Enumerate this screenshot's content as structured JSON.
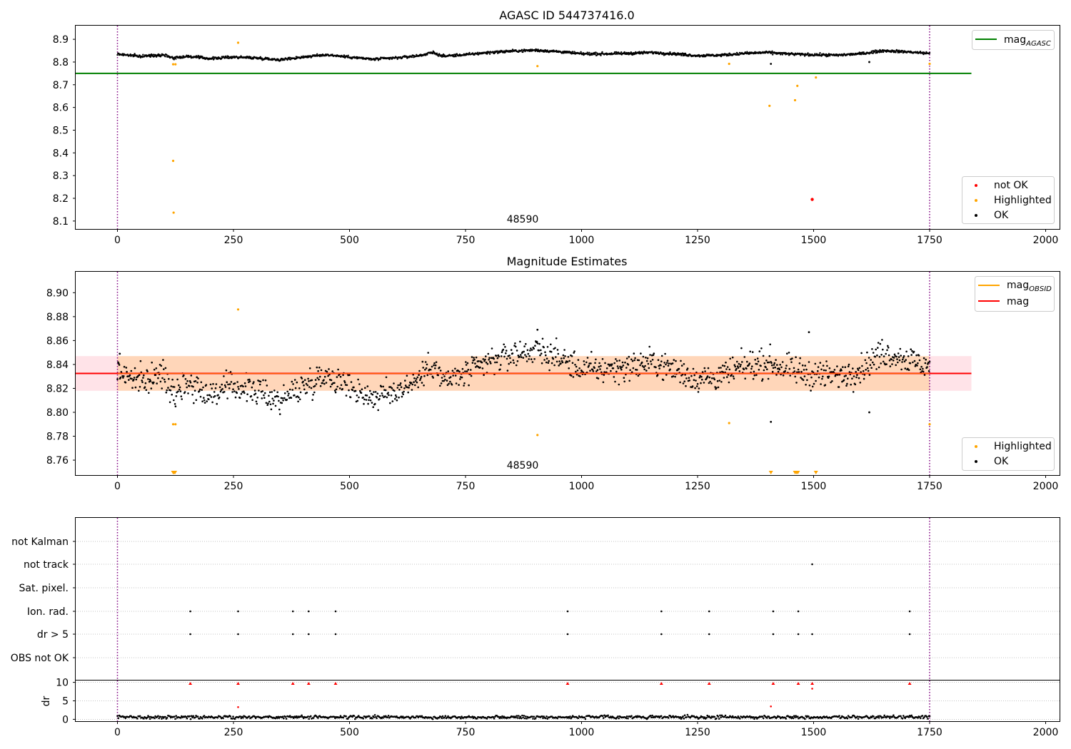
{
  "chart_data": [
    {
      "type": "scatter",
      "title": "AGASC ID 544737416.0",
      "xlim": [
        -90,
        2030
      ],
      "ylim": [
        8.065,
        8.96
      ],
      "xticks": [
        "0",
        "250",
        "500",
        "750",
        "1000",
        "1250",
        "1500",
        "1750",
        "2000"
      ],
      "xtick_values": [
        0,
        250,
        500,
        750,
        1000,
        1250,
        1500,
        1750,
        2000
      ],
      "yticks": [
        "8.1",
        "8.2",
        "8.3",
        "8.4",
        "8.5",
        "8.6",
        "8.7",
        "8.8",
        "8.9"
      ],
      "ytick_values": [
        8.1,
        8.2,
        8.3,
        8.4,
        8.5,
        8.6,
        8.7,
        8.8,
        8.9
      ],
      "vlines": [
        0,
        1750
      ],
      "obsid_label": "48590",
      "obsid_label_x": 875,
      "obsid_label_y": 8.095,
      "mag_agasc": 8.75,
      "mag_agasc_extent": [
        -90,
        1840
      ],
      "legend_lines": [
        {
          "label": "mag",
          "sub": "AGASC",
          "color": "#008000"
        }
      ],
      "legend_points": [
        {
          "label": "not OK",
          "color": "#ff0000"
        },
        {
          "label": "Highlighted",
          "color": "#ffa500"
        },
        {
          "label": "OK",
          "color": "#000000"
        }
      ],
      "ok_trend": [
        [
          0,
          8.835
        ],
        [
          50,
          8.825
        ],
        [
          100,
          8.832
        ],
        [
          120,
          8.818
        ],
        [
          150,
          8.825
        ],
        [
          200,
          8.815
        ],
        [
          250,
          8.822
        ],
        [
          300,
          8.818
        ],
        [
          350,
          8.81
        ],
        [
          400,
          8.822
        ],
        [
          450,
          8.832
        ],
        [
          500,
          8.822
        ],
        [
          550,
          8.812
        ],
        [
          600,
          8.818
        ],
        [
          650,
          8.828
        ],
        [
          680,
          8.842
        ],
        [
          700,
          8.826
        ],
        [
          750,
          8.832
        ],
        [
          800,
          8.842
        ],
        [
          850,
          8.848
        ],
        [
          900,
          8.852
        ],
        [
          950,
          8.846
        ],
        [
          1000,
          8.836
        ],
        [
          1050,
          8.836
        ],
        [
          1100,
          8.838
        ],
        [
          1150,
          8.842
        ],
        [
          1200,
          8.836
        ],
        [
          1250,
          8.828
        ],
        [
          1300,
          8.83
        ],
        [
          1350,
          8.838
        ],
        [
          1400,
          8.842
        ],
        [
          1450,
          8.835
        ],
        [
          1500,
          8.832
        ],
        [
          1550,
          8.83
        ],
        [
          1600,
          8.836
        ],
        [
          1650,
          8.85
        ],
        [
          1700,
          8.845
        ],
        [
          1750,
          8.838
        ]
      ],
      "ok_noise": 0.008,
      "ok_extra": [
        [
          1408,
          8.792
        ],
        [
          1620,
          8.8
        ]
      ],
      "highlighted": [
        [
          120,
          8.79
        ],
        [
          125,
          8.79
        ],
        [
          120,
          8.365
        ],
        [
          121,
          8.137
        ],
        [
          260,
          8.885
        ],
        [
          905,
          8.782
        ],
        [
          1318,
          8.792
        ],
        [
          1405,
          8.607
        ],
        [
          1460,
          8.632
        ],
        [
          1465,
          8.695
        ],
        [
          1505,
          8.732
        ],
        [
          1750,
          8.792
        ]
      ],
      "not_ok": [
        [
          1497,
          8.195
        ]
      ]
    },
    {
      "type": "scatter",
      "title": "Magnitude Estimates",
      "xlim": [
        -90,
        2030
      ],
      "ylim": [
        8.7475,
        8.9175
      ],
      "xticks": [
        "0",
        "250",
        "500",
        "750",
        "1000",
        "1250",
        "1500",
        "1750",
        "2000"
      ],
      "xtick_values": [
        0,
        250,
        500,
        750,
        1000,
        1250,
        1500,
        1750,
        2000
      ],
      "yticks": [
        "8.76",
        "8.78",
        "8.80",
        "8.82",
        "8.84",
        "8.86",
        "8.88",
        "8.90"
      ],
      "ytick_values": [
        8.76,
        8.78,
        8.8,
        8.82,
        8.84,
        8.86,
        8.88,
        8.9
      ],
      "vlines": [
        0,
        1750
      ],
      "obsid_label": "48590",
      "obsid_label_x": 875,
      "obsid_label_y": 8.7535,
      "mag": 8.8325,
      "mag_extent": [
        -90,
        1840
      ],
      "band_outer": [
        8.818,
        8.847
      ],
      "band_outer_extent": [
        -90,
        1840
      ],
      "band_obsid": [
        8.818,
        8.847
      ],
      "band_obsid_extent": [
        0,
        1750
      ],
      "legend_lines": [
        {
          "label": "mag",
          "sub": "OBSID",
          "color": "#ffa500"
        },
        {
          "label": "mag",
          "sub": "",
          "color": "#ff0000"
        }
      ],
      "legend_points": [
        {
          "label": "Highlighted",
          "color": "#ffa500"
        },
        {
          "label": "OK",
          "color": "#000000"
        }
      ],
      "ok_trend": [
        [
          0,
          8.835
        ],
        [
          50,
          8.825
        ],
        [
          100,
          8.832
        ],
        [
          120,
          8.818
        ],
        [
          150,
          8.825
        ],
        [
          200,
          8.815
        ],
        [
          250,
          8.822
        ],
        [
          300,
          8.818
        ],
        [
          350,
          8.81
        ],
        [
          400,
          8.822
        ],
        [
          450,
          8.832
        ],
        [
          500,
          8.822
        ],
        [
          550,
          8.812
        ],
        [
          600,
          8.818
        ],
        [
          650,
          8.828
        ],
        [
          680,
          8.842
        ],
        [
          700,
          8.826
        ],
        [
          750,
          8.832
        ],
        [
          800,
          8.842
        ],
        [
          850,
          8.848
        ],
        [
          900,
          8.852
        ],
        [
          950,
          8.846
        ],
        [
          1000,
          8.836
        ],
        [
          1050,
          8.836
        ],
        [
          1100,
          8.838
        ],
        [
          1150,
          8.842
        ],
        [
          1200,
          8.836
        ],
        [
          1250,
          8.828
        ],
        [
          1300,
          8.83
        ],
        [
          1350,
          8.838
        ],
        [
          1400,
          8.842
        ],
        [
          1450,
          8.835
        ],
        [
          1500,
          8.832
        ],
        [
          1550,
          8.83
        ],
        [
          1600,
          8.836
        ],
        [
          1650,
          8.85
        ],
        [
          1700,
          8.845
        ],
        [
          1750,
          8.838
        ]
      ],
      "ok_noise": 0.008,
      "ok_extra": [
        [
          1408,
          8.792
        ],
        [
          1620,
          8.8
        ],
        [
          5,
          8.849
        ],
        [
          905,
          8.869
        ],
        [
          1490,
          8.867
        ]
      ],
      "highlighted": [
        [
          120,
          8.79
        ],
        [
          125,
          8.79
        ],
        [
          260,
          8.886
        ],
        [
          905,
          8.781
        ],
        [
          1318,
          8.791
        ],
        [
          1750,
          8.79
        ]
      ],
      "highlighted_clipped": [
        120,
        122,
        124,
        1408,
        1460,
        1463,
        1466,
        1505
      ]
    },
    {
      "type": "scatter",
      "title": "",
      "xlim": [
        -90,
        2030
      ],
      "categories": [
        "not Kalman",
        "not track",
        "Sat. pixel.",
        "Ion. rad.",
        "dr > 5",
        "OBS not OK"
      ],
      "flags": {
        "not Kalman": [],
        "not track": [
          1497
        ],
        "Sat. pixel.": [],
        "Ion. rad.": [
          157,
          260,
          378,
          412,
          470,
          970,
          1172,
          1275,
          1413,
          1467,
          1707
        ],
        "dr > 5": [
          157,
          260,
          378,
          412,
          470,
          970,
          1172,
          1275,
          1413,
          1467,
          1497,
          1707
        ],
        "OBS not OK": []
      },
      "vlines": [
        0,
        1750
      ]
    },
    {
      "type": "scatter",
      "title": "",
      "xlim": [
        -90,
        2030
      ],
      "ylim": [
        -0.5,
        10.5
      ],
      "ylabel": "dr",
      "xticks": [
        "0",
        "250",
        "500",
        "750",
        "1000",
        "1250",
        "1500",
        "1750",
        "2000"
      ],
      "xtick_values": [
        0,
        250,
        500,
        750,
        1000,
        1250,
        1500,
        1750,
        2000
      ],
      "yticks": [
        "0",
        "5",
        "10"
      ],
      "ytick_values": [
        0,
        5,
        10
      ],
      "vlines": [
        0,
        1750
      ],
      "dr_typical": 0.6,
      "dr_clipped_markers": [
        157,
        260,
        378,
        412,
        470,
        970,
        1172,
        1275,
        1413,
        1467,
        1497,
        1707
      ],
      "dr_outliers": [
        [
          260,
          3.3
        ],
        [
          1408,
          3.5
        ],
        [
          1497,
          8.3
        ]
      ]
    }
  ]
}
